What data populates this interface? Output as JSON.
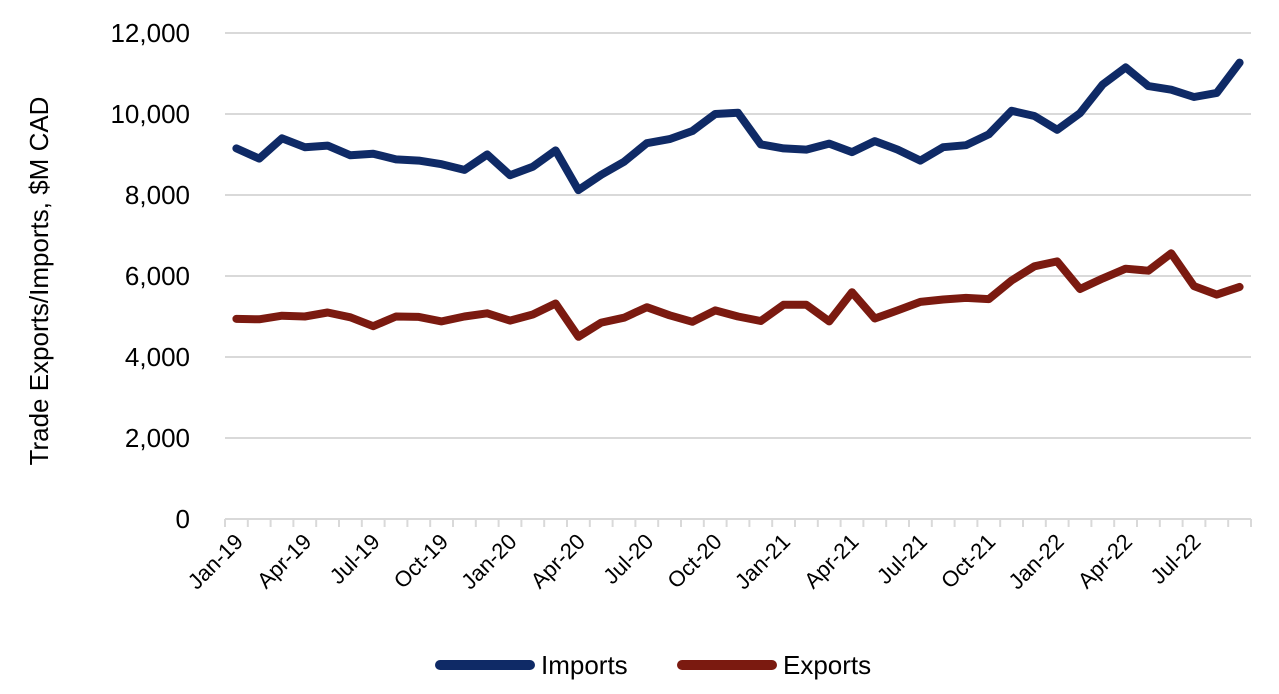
{
  "chart_data": {
    "type": "line",
    "ylabel": "Trade Exports/Imports, $M CAD",
    "xlabel": "",
    "ylim": [
      0,
      12000
    ],
    "yticks": [
      0,
      2000,
      4000,
      6000,
      8000,
      10000,
      12000
    ],
    "ytick_labels": [
      "0",
      "2,000",
      "4,000",
      "6,000",
      "8,000",
      "10,000",
      "12,000"
    ],
    "grid": true,
    "legend": "bottom",
    "categories": [
      "Jan-19",
      "Feb-19",
      "Mar-19",
      "Apr-19",
      "May-19",
      "Jun-19",
      "Jul-19",
      "Aug-19",
      "Sep-19",
      "Oct-19",
      "Nov-19",
      "Dec-19",
      "Jan-20",
      "Feb-20",
      "Mar-20",
      "Apr-20",
      "May-20",
      "Jun-20",
      "Jul-20",
      "Aug-20",
      "Sep-20",
      "Oct-20",
      "Nov-20",
      "Dec-20",
      "Jan-21",
      "Feb-21",
      "Mar-21",
      "Apr-21",
      "May-21",
      "Jun-21",
      "Jul-21",
      "Aug-21",
      "Sep-21",
      "Oct-21",
      "Nov-21",
      "Dec-21",
      "Jan-22",
      "Feb-22",
      "Mar-22",
      "Apr-22",
      "May-22",
      "Jun-22",
      "Jul-22",
      "Aug-22",
      "Sep-22"
    ],
    "x_tick_labels": [
      "Jan-19",
      "Apr-19",
      "Jul-19",
      "Oct-19",
      "Jan-20",
      "Apr-20",
      "Jul-20",
      "Oct-20",
      "Jan-21",
      "Apr-21",
      "Jul-21",
      "Oct-21",
      "Jan-22",
      "Apr-22",
      "Jul-22"
    ],
    "series": [
      {
        "name": "Imports",
        "color": "#0f2a66",
        "values": [
          9150,
          8900,
          9400,
          9180,
          9220,
          8980,
          9020,
          8880,
          8850,
          8760,
          8620,
          9000,
          8490,
          8700,
          9100,
          8120,
          8500,
          8820,
          9280,
          9380,
          9580,
          10000,
          10030,
          9250,
          9150,
          9120,
          9270,
          9060,
          9330,
          9120,
          8850,
          9180,
          9230,
          9500,
          10080,
          9950,
          9610,
          10020,
          10730,
          11150,
          10690,
          10600,
          10420,
          10520,
          11270
        ]
      },
      {
        "name": "Exports",
        "color": "#7b1a10",
        "values": [
          4940,
          4930,
          5020,
          5000,
          5100,
          4980,
          4760,
          5000,
          4990,
          4880,
          5000,
          5080,
          4900,
          5050,
          5320,
          4500,
          4850,
          4970,
          5230,
          5030,
          4870,
          5150,
          5000,
          4890,
          5290,
          5290,
          4880,
          5600,
          4950,
          5150,
          5360,
          5420,
          5460,
          5430,
          5890,
          6240,
          6360,
          5680,
          5940,
          6180,
          6130,
          6560,
          5750,
          5540,
          5730
        ]
      }
    ]
  }
}
